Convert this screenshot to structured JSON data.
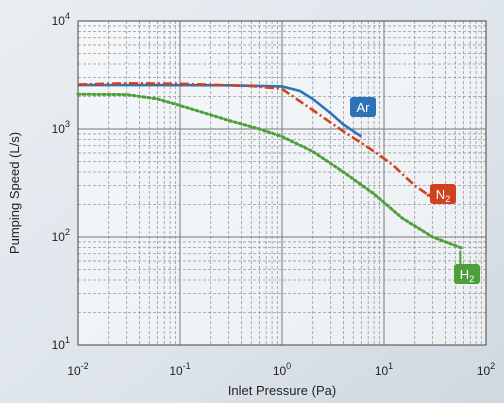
{
  "chart_data": {
    "type": "line",
    "xscale": "log",
    "yscale": "log",
    "xlim": [
      0.01,
      100
    ],
    "ylim": [
      10,
      10000
    ],
    "xlabel": "Inlet Pressure (Pa)",
    "ylabel": "Pumping Speed (L/s)",
    "grid": true,
    "x_ticks": [
      {
        "value": 0.01,
        "base": "10",
        "exp": "-2"
      },
      {
        "value": 0.1,
        "base": "10",
        "exp": "-1"
      },
      {
        "value": 1,
        "base": "10",
        "exp": "0"
      },
      {
        "value": 10,
        "base": "10",
        "exp": "1"
      },
      {
        "value": 100,
        "base": "10",
        "exp": "2"
      }
    ],
    "y_ticks": [
      {
        "value": 10,
        "base": "10",
        "exp": "1"
      },
      {
        "value": 100,
        "base": "10",
        "exp": "2"
      },
      {
        "value": 1000,
        "base": "10",
        "exp": "3"
      },
      {
        "value": 10000,
        "base": "10",
        "exp": "4"
      }
    ],
    "series": [
      {
        "label": {
          "text": "Ar",
          "main": "Ar",
          "sub": ""
        },
        "color": "#2e72b8",
        "style": "solid",
        "points": [
          [
            0.01,
            2550
          ],
          [
            0.05,
            2550
          ],
          [
            0.3,
            2540
          ],
          [
            1,
            2480
          ],
          [
            1.5,
            2250
          ],
          [
            2,
            1900
          ],
          [
            3,
            1400
          ],
          [
            4,
            1100
          ],
          [
            6,
            850
          ]
        ]
      },
      {
        "label": {
          "text": "N2",
          "main": "N",
          "sub": "2"
        },
        "color": "#d0411e",
        "style": "dashdot",
        "points": [
          [
            0.01,
            2580
          ],
          [
            0.03,
            2650
          ],
          [
            0.1,
            2620
          ],
          [
            0.5,
            2500
          ],
          [
            1,
            2350
          ],
          [
            2,
            1500
          ],
          [
            4,
            950
          ],
          [
            8,
            620
          ],
          [
            12,
            470
          ],
          [
            20,
            300
          ],
          [
            30,
            230
          ]
        ]
      },
      {
        "label": {
          "text": "H2",
          "main": "H",
          "sub": "2"
        },
        "color": "#4e9e3a",
        "style": "dotted",
        "points": [
          [
            0.01,
            2100
          ],
          [
            0.03,
            2080
          ],
          [
            0.06,
            1900
          ],
          [
            0.1,
            1650
          ],
          [
            0.3,
            1200
          ],
          [
            0.6,
            1000
          ],
          [
            1,
            850
          ],
          [
            2,
            620
          ],
          [
            4,
            400
          ],
          [
            8,
            250
          ],
          [
            15,
            150
          ],
          [
            30,
            100
          ],
          [
            60,
            78
          ]
        ]
      }
    ]
  }
}
